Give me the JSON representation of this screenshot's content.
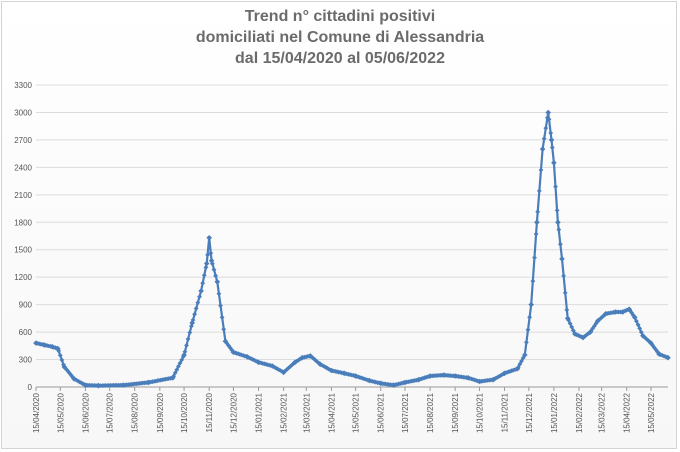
{
  "chart_data": {
    "type": "line",
    "title_lines": [
      "Trend n° cittadini positivi",
      "domiciliati nel Comune di Alessandria",
      "dal 15/04/2020 al 05/06/2022"
    ],
    "xlabel": "",
    "ylabel": "",
    "ylim": [
      0,
      3300
    ],
    "yticks": [
      0,
      300,
      600,
      900,
      1200,
      1500,
      1800,
      2100,
      2400,
      2700,
      3000,
      3300
    ],
    "xlim": [
      "2020-04-15",
      "2022-06-05"
    ],
    "xticks": [
      "15/04/2020",
      "15/05/2020",
      "15/06/2020",
      "15/07/2020",
      "15/08/2020",
      "15/09/2020",
      "15/10/2020",
      "15/11/2020",
      "15/12/2020",
      "15/01/2021",
      "15/02/2021",
      "15/03/2021",
      "15/04/2021",
      "15/05/2021",
      "15/06/2021",
      "15/07/2021",
      "15/08/2021",
      "15/09/2021",
      "15/10/2021",
      "15/11/2021",
      "15/12/2021",
      "15/01/2022",
      "15/02/2022",
      "15/03/2022",
      "15/04/2022",
      "15/05/2022"
    ],
    "grid": true,
    "legend": "none",
    "line_color": "#4a7ebb",
    "series": [
      {
        "x": [
          "2020-04-15",
          "2020-04-25",
          "2020-05-05",
          "2020-05-12",
          "2020-05-20",
          "2020-06-01",
          "2020-06-15",
          "2020-07-01",
          "2020-08-01",
          "2020-09-01",
          "2020-10-01",
          "2020-10-15",
          "2020-10-25",
          "2020-11-05",
          "2020-11-12",
          "2020-11-15",
          "2020-11-18",
          "2020-11-25",
          "2020-12-05",
          "2020-12-15",
          "2021-01-01",
          "2021-01-15",
          "2021-02-01",
          "2021-02-15",
          "2021-03-01",
          "2021-03-10",
          "2021-03-20",
          "2021-04-01",
          "2021-04-15",
          "2021-05-01",
          "2021-05-15",
          "2021-06-01",
          "2021-06-15",
          "2021-07-01",
          "2021-07-15",
          "2021-08-01",
          "2021-08-15",
          "2021-09-01",
          "2021-09-15",
          "2021-10-01",
          "2021-10-15",
          "2021-11-01",
          "2021-11-15",
          "2021-12-01",
          "2021-12-10",
          "2021-12-18",
          "2021-12-25",
          "2022-01-01",
          "2022-01-08",
          "2022-01-12",
          "2022-01-15",
          "2022-01-20",
          "2022-01-25",
          "2022-02-01",
          "2022-02-10",
          "2022-02-20",
          "2022-03-01",
          "2022-03-10",
          "2022-03-20",
          "2022-04-01",
          "2022-04-10",
          "2022-04-18",
          "2022-04-25",
          "2022-05-05",
          "2022-05-15",
          "2022-05-25",
          "2022-06-05"
        ],
        "y": [
          480,
          460,
          440,
          420,
          220,
          90,
          20,
          15,
          20,
          50,
          100,
          350,
          700,
          1050,
          1350,
          1630,
          1380,
          1150,
          500,
          380,
          330,
          270,
          230,
          160,
          270,
          320,
          340,
          250,
          180,
          150,
          120,
          70,
          40,
          20,
          50,
          80,
          120,
          130,
          120,
          100,
          60,
          80,
          150,
          200,
          350,
          900,
          1800,
          2600,
          3000,
          2700,
          2450,
          1800,
          1400,
          750,
          580,
          540,
          600,
          720,
          800,
          820,
          820,
          850,
          760,
          560,
          480,
          360,
          320
        ]
      }
    ]
  }
}
